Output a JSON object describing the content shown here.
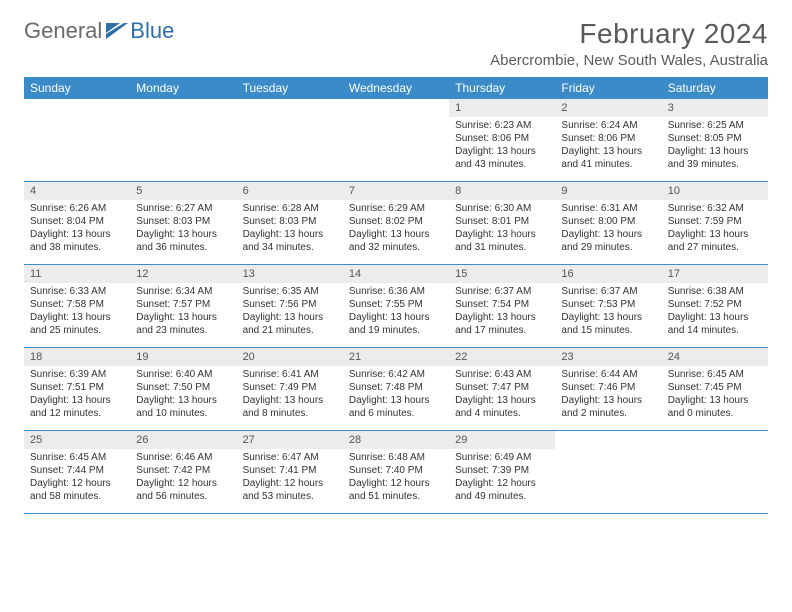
{
  "logo": {
    "text1": "General",
    "text2": "Blue"
  },
  "title": "February 2024",
  "location": "Abercrombie, New South Wales, Australia",
  "colors": {
    "header_bar": "#3b8bc9",
    "day_num_bg": "#ececec",
    "week_border": "#3b8bc9",
    "logo_gray": "#6b6b6b",
    "logo_blue": "#2f6fa8"
  },
  "days_of_week": [
    "Sunday",
    "Monday",
    "Tuesday",
    "Wednesday",
    "Thursday",
    "Friday",
    "Saturday"
  ],
  "weeks": [
    [
      null,
      null,
      null,
      null,
      {
        "n": "1",
        "sr": "Sunrise: 6:23 AM",
        "ss": "Sunset: 8:06 PM",
        "dl": "Daylight: 13 hours and 43 minutes."
      },
      {
        "n": "2",
        "sr": "Sunrise: 6:24 AM",
        "ss": "Sunset: 8:06 PM",
        "dl": "Daylight: 13 hours and 41 minutes."
      },
      {
        "n": "3",
        "sr": "Sunrise: 6:25 AM",
        "ss": "Sunset: 8:05 PM",
        "dl": "Daylight: 13 hours and 39 minutes."
      }
    ],
    [
      {
        "n": "4",
        "sr": "Sunrise: 6:26 AM",
        "ss": "Sunset: 8:04 PM",
        "dl": "Daylight: 13 hours and 38 minutes."
      },
      {
        "n": "5",
        "sr": "Sunrise: 6:27 AM",
        "ss": "Sunset: 8:03 PM",
        "dl": "Daylight: 13 hours and 36 minutes."
      },
      {
        "n": "6",
        "sr": "Sunrise: 6:28 AM",
        "ss": "Sunset: 8:03 PM",
        "dl": "Daylight: 13 hours and 34 minutes."
      },
      {
        "n": "7",
        "sr": "Sunrise: 6:29 AM",
        "ss": "Sunset: 8:02 PM",
        "dl": "Daylight: 13 hours and 32 minutes."
      },
      {
        "n": "8",
        "sr": "Sunrise: 6:30 AM",
        "ss": "Sunset: 8:01 PM",
        "dl": "Daylight: 13 hours and 31 minutes."
      },
      {
        "n": "9",
        "sr": "Sunrise: 6:31 AM",
        "ss": "Sunset: 8:00 PM",
        "dl": "Daylight: 13 hours and 29 minutes."
      },
      {
        "n": "10",
        "sr": "Sunrise: 6:32 AM",
        "ss": "Sunset: 7:59 PM",
        "dl": "Daylight: 13 hours and 27 minutes."
      }
    ],
    [
      {
        "n": "11",
        "sr": "Sunrise: 6:33 AM",
        "ss": "Sunset: 7:58 PM",
        "dl": "Daylight: 13 hours and 25 minutes."
      },
      {
        "n": "12",
        "sr": "Sunrise: 6:34 AM",
        "ss": "Sunset: 7:57 PM",
        "dl": "Daylight: 13 hours and 23 minutes."
      },
      {
        "n": "13",
        "sr": "Sunrise: 6:35 AM",
        "ss": "Sunset: 7:56 PM",
        "dl": "Daylight: 13 hours and 21 minutes."
      },
      {
        "n": "14",
        "sr": "Sunrise: 6:36 AM",
        "ss": "Sunset: 7:55 PM",
        "dl": "Daylight: 13 hours and 19 minutes."
      },
      {
        "n": "15",
        "sr": "Sunrise: 6:37 AM",
        "ss": "Sunset: 7:54 PM",
        "dl": "Daylight: 13 hours and 17 minutes."
      },
      {
        "n": "16",
        "sr": "Sunrise: 6:37 AM",
        "ss": "Sunset: 7:53 PM",
        "dl": "Daylight: 13 hours and 15 minutes."
      },
      {
        "n": "17",
        "sr": "Sunrise: 6:38 AM",
        "ss": "Sunset: 7:52 PM",
        "dl": "Daylight: 13 hours and 14 minutes."
      }
    ],
    [
      {
        "n": "18",
        "sr": "Sunrise: 6:39 AM",
        "ss": "Sunset: 7:51 PM",
        "dl": "Daylight: 13 hours and 12 minutes."
      },
      {
        "n": "19",
        "sr": "Sunrise: 6:40 AM",
        "ss": "Sunset: 7:50 PM",
        "dl": "Daylight: 13 hours and 10 minutes."
      },
      {
        "n": "20",
        "sr": "Sunrise: 6:41 AM",
        "ss": "Sunset: 7:49 PM",
        "dl": "Daylight: 13 hours and 8 minutes."
      },
      {
        "n": "21",
        "sr": "Sunrise: 6:42 AM",
        "ss": "Sunset: 7:48 PM",
        "dl": "Daylight: 13 hours and 6 minutes."
      },
      {
        "n": "22",
        "sr": "Sunrise: 6:43 AM",
        "ss": "Sunset: 7:47 PM",
        "dl": "Daylight: 13 hours and 4 minutes."
      },
      {
        "n": "23",
        "sr": "Sunrise: 6:44 AM",
        "ss": "Sunset: 7:46 PM",
        "dl": "Daylight: 13 hours and 2 minutes."
      },
      {
        "n": "24",
        "sr": "Sunrise: 6:45 AM",
        "ss": "Sunset: 7:45 PM",
        "dl": "Daylight: 13 hours and 0 minutes."
      }
    ],
    [
      {
        "n": "25",
        "sr": "Sunrise: 6:45 AM",
        "ss": "Sunset: 7:44 PM",
        "dl": "Daylight: 12 hours and 58 minutes."
      },
      {
        "n": "26",
        "sr": "Sunrise: 6:46 AM",
        "ss": "Sunset: 7:42 PM",
        "dl": "Daylight: 12 hours and 56 minutes."
      },
      {
        "n": "27",
        "sr": "Sunrise: 6:47 AM",
        "ss": "Sunset: 7:41 PM",
        "dl": "Daylight: 12 hours and 53 minutes."
      },
      {
        "n": "28",
        "sr": "Sunrise: 6:48 AM",
        "ss": "Sunset: 7:40 PM",
        "dl": "Daylight: 12 hours and 51 minutes."
      },
      {
        "n": "29",
        "sr": "Sunrise: 6:49 AM",
        "ss": "Sunset: 7:39 PM",
        "dl": "Daylight: 12 hours and 49 minutes."
      },
      null,
      null
    ]
  ]
}
